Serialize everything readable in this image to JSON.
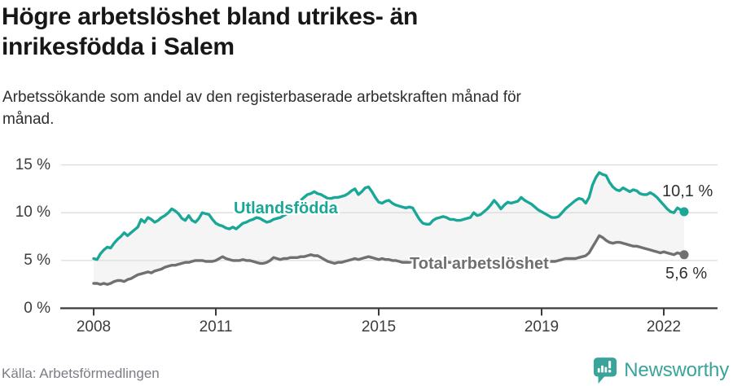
{
  "header": {
    "title_lines": [
      "Högre arbetslöshet bland utrikes- än",
      "inrikesfödda i Salem"
    ],
    "subtitle_lines": [
      "Arbetssökande som andel av den registerbaserade arbetskraften månad för",
      "månad."
    ]
  },
  "footer": {
    "source": "Källa: Arbetsförmedlingen",
    "brand": "Newsworthy",
    "brand_color": "#3aa39a"
  },
  "chart_data": {
    "type": "line",
    "unit": "%",
    "x_range": {
      "start": "2008-01",
      "end": "2022-07",
      "frequency": "monthly"
    },
    "ylim": [
      0,
      15
    ],
    "grid": "horizontal",
    "band_fill": "#f5f5f5",
    "yticks": [
      {
        "value": 0,
        "label": "0 %"
      },
      {
        "value": 5,
        "label": "5 %"
      },
      {
        "value": 10,
        "label": "10 %"
      },
      {
        "value": 15,
        "label": "15 %"
      }
    ],
    "xticks": [
      {
        "year": 2008,
        "label": "2008"
      },
      {
        "year": 2011,
        "label": "2011"
      },
      {
        "year": 2015,
        "label": "2015"
      },
      {
        "year": 2019,
        "label": "2019"
      },
      {
        "year": 2022,
        "label": "2022"
      }
    ],
    "series": [
      {
        "name": "Utlandsfödda",
        "color": "#1aa798",
        "end_label": "10,1 %",
        "end_value": 10.1,
        "values": [
          5.2,
          5.1,
          5.7,
          6.1,
          6.4,
          6.3,
          6.8,
          7.2,
          7.5,
          7.9,
          7.6,
          7.9,
          8.2,
          8.5,
          9.3,
          9.0,
          9.5,
          9.3,
          9.0,
          9.2,
          9.5,
          9.7,
          10.0,
          10.4,
          10.2,
          9.9,
          9.4,
          9.2,
          9.7,
          9.2,
          9.0,
          9.4,
          10.0,
          9.9,
          9.8,
          9.3,
          8.9,
          8.7,
          8.6,
          8.4,
          8.3,
          8.5,
          8.3,
          8.6,
          8.9,
          9.0,
          9.2,
          9.3,
          9.5,
          9.4,
          9.2,
          9.0,
          9.1,
          9.3,
          9.4,
          9.5,
          9.7,
          9.9,
          10.2,
          10.5,
          10.9,
          11.3,
          11.6,
          11.9,
          12.0,
          12.2,
          12.0,
          11.9,
          11.7,
          11.5,
          11.5,
          11.6,
          11.6,
          11.7,
          11.8,
          12.0,
          12.3,
          12.5,
          11.9,
          12.2,
          12.6,
          12.7,
          12.2,
          11.6,
          11.1,
          11.0,
          11.2,
          11.3,
          11.0,
          10.8,
          10.7,
          10.6,
          10.5,
          10.6,
          10.5,
          9.9,
          9.3,
          8.9,
          8.8,
          8.8,
          9.2,
          9.4,
          9.5,
          9.6,
          9.5,
          9.3,
          9.3,
          9.2,
          9.2,
          9.3,
          9.4,
          9.5,
          10.0,
          9.7,
          9.8,
          10.1,
          10.4,
          10.8,
          11.3,
          10.9,
          10.4,
          10.8,
          11.1,
          11.0,
          11.1,
          11.2,
          11.6,
          11.3,
          11.1,
          10.9,
          10.6,
          10.3,
          10.1,
          9.9,
          9.7,
          9.5,
          9.5,
          9.6,
          10.0,
          10.4,
          10.7,
          11.0,
          11.3,
          11.5,
          11.4,
          11.0,
          11.6,
          12.9,
          13.7,
          14.2,
          14.0,
          13.9,
          13.2,
          12.7,
          12.4,
          12.3,
          12.6,
          12.4,
          12.2,
          12.4,
          12.3,
          12.0,
          11.9,
          11.9,
          12.1,
          11.9,
          11.6,
          11.2,
          10.8,
          10.4,
          10.1,
          10.0,
          10.5,
          10.3,
          10.1
        ]
      },
      {
        "name": "Total arbetslöshet",
        "color": "#707070",
        "end_label": "5,6 %",
        "end_value": 5.6,
        "values": [
          2.6,
          2.6,
          2.5,
          2.6,
          2.5,
          2.6,
          2.8,
          2.9,
          2.9,
          2.8,
          3.0,
          3.1,
          3.3,
          3.5,
          3.6,
          3.7,
          3.8,
          3.7,
          3.9,
          4.0,
          4.1,
          4.3,
          4.4,
          4.5,
          4.5,
          4.6,
          4.7,
          4.8,
          4.8,
          4.9,
          5.0,
          5.0,
          5.0,
          4.9,
          4.9,
          4.9,
          5.0,
          5.2,
          5.4,
          5.2,
          5.1,
          5.0,
          5.0,
          5.0,
          5.1,
          5.0,
          5.0,
          4.9,
          4.8,
          4.7,
          4.7,
          4.8,
          5.0,
          5.3,
          5.2,
          5.1,
          5.2,
          5.2,
          5.3,
          5.3,
          5.3,
          5.4,
          5.4,
          5.5,
          5.6,
          5.5,
          5.5,
          5.3,
          5.1,
          4.9,
          4.8,
          4.7,
          4.8,
          4.8,
          4.9,
          5.0,
          5.1,
          5.2,
          5.1,
          5.2,
          5.3,
          5.4,
          5.3,
          5.2,
          5.1,
          5.2,
          5.1,
          5.1,
          5.0,
          5.0,
          4.9,
          4.8,
          4.8,
          4.8,
          4.9,
          4.9,
          4.9,
          4.9,
          4.8,
          4.8,
          4.7,
          4.8,
          4.8,
          4.9,
          4.8,
          4.8,
          4.7,
          4.7,
          4.8,
          4.8,
          4.9,
          4.9,
          5.0,
          4.9,
          5.0,
          5.0,
          5.1,
          5.1,
          5.1,
          5.0,
          5.0,
          5.0,
          5.1,
          5.0,
          5.0,
          5.1,
          5.1,
          5.1,
          5.0,
          5.0,
          4.9,
          4.9,
          4.8,
          4.8,
          4.9,
          4.9,
          4.9,
          5.0,
          5.1,
          5.2,
          5.2,
          5.2,
          5.2,
          5.3,
          5.4,
          5.5,
          5.8,
          6.4,
          7.0,
          7.6,
          7.4,
          7.1,
          6.9,
          6.8,
          6.9,
          6.9,
          6.8,
          6.7,
          6.6,
          6.5,
          6.5,
          6.4,
          6.3,
          6.2,
          6.1,
          6.0,
          5.9,
          5.8,
          5.9,
          5.8,
          5.7,
          5.6,
          5.8,
          5.7,
          5.6
        ]
      }
    ]
  }
}
